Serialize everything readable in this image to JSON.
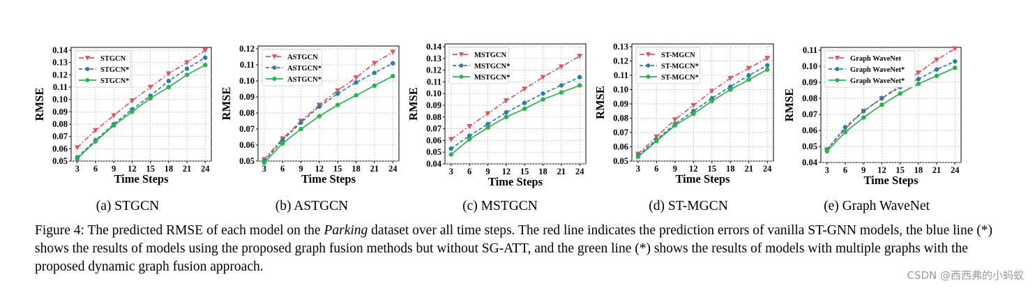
{
  "chart_data": [
    {
      "type": "line",
      "label": "(a) STGCN",
      "x": [
        3,
        6,
        9,
        12,
        15,
        18,
        21,
        24
      ],
      "xlabel": "Time Steps",
      "ylabel": "RMSE",
      "ylim": [
        0.05,
        0.14
      ],
      "yticks": [
        "0.05",
        "0.06",
        "0.07",
        "0.08",
        "0.09",
        "0.10",
        "0.11",
        "0.12",
        "0.13",
        "0.14"
      ],
      "grid": true,
      "legend_position": "top-left",
      "series": [
        {
          "name": "STGCN",
          "color": "#e0545e",
          "marker": "triangle-down",
          "dash": "dashdot",
          "values": [
            0.061,
            0.075,
            0.087,
            0.099,
            0.11,
            0.121,
            0.13,
            0.14
          ]
        },
        {
          "name": "STGCN*",
          "color": "#2e7ea3",
          "marker": "circle",
          "dash": "dashed",
          "values": [
            0.053,
            0.067,
            0.08,
            0.092,
            0.103,
            0.115,
            0.125,
            0.134
          ]
        },
        {
          "name": "STGCN*",
          "color": "#2bb24c",
          "marker": "circle",
          "dash": "solid",
          "values": [
            0.052,
            0.066,
            0.079,
            0.09,
            0.101,
            0.11,
            0.12,
            0.128
          ]
        }
      ]
    },
    {
      "type": "line",
      "label": "(b) ASTGCN",
      "x": [
        3,
        6,
        9,
        12,
        15,
        18,
        21,
        24
      ],
      "xlabel": "Time Steps",
      "ylabel": "RMSE",
      "ylim": [
        0.05,
        0.12
      ],
      "yticks": [
        "0.05",
        "0.06",
        "0.07",
        "0.08",
        "0.09",
        "0.10",
        "0.11",
        "0.12"
      ],
      "grid": true,
      "legend_position": "top-left",
      "series": [
        {
          "name": "ASTGCN",
          "color": "#e0545e",
          "marker": "triangle-down",
          "dash": "dashdot",
          "values": [
            0.051,
            0.064,
            0.075,
            0.085,
            0.094,
            0.102,
            0.111,
            0.118
          ]
        },
        {
          "name": "ASTGCN*",
          "color": "#2e7ea3",
          "marker": "circle",
          "dash": "dashed",
          "values": [
            0.05,
            0.063,
            0.074,
            0.084,
            0.092,
            0.099,
            0.105,
            0.111
          ]
        },
        {
          "name": "ASTGCN*",
          "color": "#2bb24c",
          "marker": "circle",
          "dash": "solid",
          "values": [
            0.049,
            0.061,
            0.07,
            0.078,
            0.085,
            0.091,
            0.097,
            0.103
          ]
        }
      ]
    },
    {
      "type": "line",
      "label": "(c) MSTGCN",
      "x": [
        3,
        6,
        9,
        12,
        15,
        18,
        21,
        24
      ],
      "xlabel": "Time Steps",
      "ylabel": "RMSE",
      "ylim": [
        0.04,
        0.14
      ],
      "yticks": [
        "0.04",
        "0.05",
        "0.06",
        "0.07",
        "0.08",
        "0.09",
        "0.10",
        "0.11",
        "0.12",
        "0.13",
        "0.14"
      ],
      "grid": true,
      "legend_position": "top-left",
      "series": [
        {
          "name": "MSTGCN",
          "color": "#e0545e",
          "marker": "triangle-down",
          "dash": "dashdot",
          "values": [
            0.061,
            0.072,
            0.083,
            0.094,
            0.104,
            0.114,
            0.123,
            0.132
          ]
        },
        {
          "name": "MSTGCN*",
          "color": "#2e7ea3",
          "marker": "circle",
          "dash": "dashed",
          "values": [
            0.053,
            0.064,
            0.074,
            0.084,
            0.092,
            0.1,
            0.107,
            0.114
          ]
        },
        {
          "name": "MSTGCN*",
          "color": "#2bb24c",
          "marker": "circle",
          "dash": "solid",
          "values": [
            0.048,
            0.061,
            0.071,
            0.08,
            0.087,
            0.095,
            0.101,
            0.107
          ]
        }
      ]
    },
    {
      "type": "line",
      "label": "(d) ST-MGCN",
      "x": [
        3,
        6,
        9,
        12,
        15,
        18,
        21,
        24
      ],
      "xlabel": "Time Steps",
      "ylabel": "RMSE",
      "ylim": [
        0.05,
        0.13
      ],
      "yticks": [
        "0.05",
        "0.06",
        "0.07",
        "0.08",
        "0.09",
        "0.10",
        "0.11",
        "0.12",
        "0.13"
      ],
      "grid": true,
      "legend_position": "top-left",
      "series": [
        {
          "name": "ST-MGCN",
          "color": "#e0545e",
          "marker": "triangle-down",
          "dash": "dashdot",
          "values": [
            0.055,
            0.067,
            0.079,
            0.089,
            0.099,
            0.108,
            0.115,
            0.122
          ]
        },
        {
          "name": "ST-MGCN*",
          "color": "#2e7ea3",
          "marker": "circle",
          "dash": "dashed",
          "values": [
            0.054,
            0.065,
            0.076,
            0.085,
            0.094,
            0.102,
            0.11,
            0.117
          ]
        },
        {
          "name": "ST-MGCN*",
          "color": "#2bb24c",
          "marker": "circle",
          "dash": "solid",
          "values": [
            0.053,
            0.064,
            0.075,
            0.083,
            0.092,
            0.1,
            0.107,
            0.114
          ]
        }
      ]
    },
    {
      "type": "line",
      "label": "(e) Graph WaveNet",
      "x": [
        3,
        6,
        9,
        12,
        15,
        18,
        21,
        24
      ],
      "xlabel": "Time Steps",
      "ylabel": "RMSE",
      "ylim": [
        0.04,
        0.11
      ],
      "yticks": [
        "0.04",
        "0.05",
        "0.06",
        "0.07",
        "0.08",
        "0.09",
        "0.10",
        "0.11"
      ],
      "grid": true,
      "legend_position": "top-left",
      "series": [
        {
          "name": "Graph WaveNet",
          "color": "#e0545e",
          "marker": "triangle-down",
          "dash": "dashdot",
          "values": [
            0.048,
            0.061,
            0.072,
            0.08,
            0.088,
            0.096,
            0.104,
            0.111
          ]
        },
        {
          "name": "Graph WaveNet*",
          "color": "#2e7ea3",
          "marker": "circle",
          "dash": "dashed",
          "values": [
            0.048,
            0.062,
            0.072,
            0.08,
            0.087,
            0.092,
            0.098,
            0.103
          ]
        },
        {
          "name": "Graph WaveNet*",
          "color": "#2bb24c",
          "marker": "circle",
          "dash": "solid",
          "values": [
            0.047,
            0.059,
            0.068,
            0.076,
            0.083,
            0.089,
            0.094,
            0.099
          ]
        }
      ]
    }
  ],
  "caption": {
    "prefix": "Figure 4: The predicted RMSE of each model on the ",
    "dataset": "Parking",
    "suffix": " dataset over all time steps. The red line indicates the prediction errors of vanilla ST-GNN models, the blue line (*) shows the results of models using the proposed graph fusion methods but without SG-ATT, and the green line (*) shows the results of models with multiple graphs with the proposed dynamic graph fusion approach."
  },
  "watermark": "CSDN @西西弗的小蚂蚁"
}
